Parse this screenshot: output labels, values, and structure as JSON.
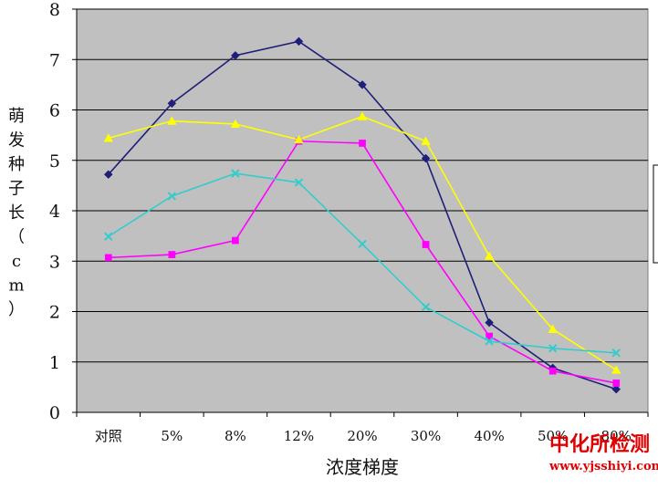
{
  "chart_data": {
    "type": "line",
    "title": "",
    "xlabel": "浓度梯度",
    "ylabel_chars": [
      "萌",
      "发",
      "种",
      "子",
      "长",
      "（",
      "c",
      "m",
      "）"
    ],
    "categories": [
      "对照",
      "5%",
      "8%",
      "12%",
      "20%",
      "30%",
      "40%",
      "50%",
      "80%"
    ],
    "ylim": [
      0,
      8
    ],
    "yticks": [
      "0",
      "1",
      "2",
      "3",
      "4",
      "5",
      "6",
      "7",
      "8"
    ],
    "grid": true,
    "series": [
      {
        "color": "#1f1f7a",
        "marker": "diamond",
        "values": [
          4.72,
          6.13,
          7.08,
          7.36,
          6.5,
          5.04,
          1.78,
          0.88,
          0.46
        ]
      },
      {
        "color": "#ff00ff",
        "marker": "square",
        "values": [
          3.07,
          3.13,
          3.41,
          5.38,
          5.34,
          3.33,
          1.51,
          0.82,
          0.58
        ]
      },
      {
        "color": "#ffff00",
        "marker": "triangle",
        "values": [
          5.44,
          5.78,
          5.72,
          5.41,
          5.87,
          5.38,
          3.1,
          1.65,
          0.84
        ]
      },
      {
        "color": "#33cccc",
        "marker": "x",
        "values": [
          3.49,
          4.29,
          4.74,
          4.56,
          3.34,
          2.09,
          1.41,
          1.27,
          1.18
        ]
      }
    ]
  },
  "watermark": {
    "main": "中化所检测",
    "url": "www.yjsshiyi.com"
  },
  "colors": {
    "plot_background": "#c0c0c0",
    "gridline": "#000000",
    "watermark": "#e00000"
  }
}
